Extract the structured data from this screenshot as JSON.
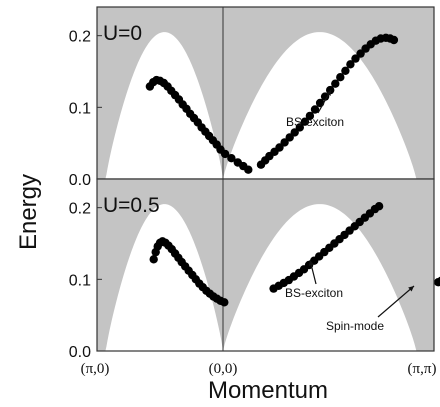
{
  "chart_data": {
    "type": "scatter",
    "xlabel": "Momentum",
    "ylabel": "Energy",
    "x_ticks": [
      "(π,0)",
      "(0,0)",
      "(π,π)"
    ],
    "y_ticks": [
      "0.0",
      "0.1",
      "0.2"
    ],
    "ylim": [
      0,
      0.24
    ],
    "grid": false,
    "continuum_color": "#c4c4c4",
    "marker_color": "#000000",
    "panels": [
      {
        "label": "U=0",
        "annotations": [
          {
            "text": "BS-exciton"
          }
        ],
        "series": [
          {
            "points": [
              [
                0.21,
                0.129
              ],
              [
                0.223,
                0.135
              ],
              [
                0.236,
                0.138
              ],
              [
                0.25,
                0.137
              ],
              [
                0.265,
                0.134
              ],
              [
                0.28,
                0.129
              ],
              [
                0.295,
                0.123
              ],
              [
                0.31,
                0.117
              ],
              [
                0.325,
                0.111
              ],
              [
                0.34,
                0.104
              ],
              [
                0.355,
                0.098
              ],
              [
                0.37,
                0.091
              ],
              [
                0.385,
                0.085
              ],
              [
                0.4,
                0.079
              ],
              [
                0.415,
                0.072
              ],
              [
                0.43,
                0.066
              ],
              [
                0.445,
                0.06
              ],
              [
                0.46,
                0.054
              ],
              [
                0.475,
                0.048
              ],
              [
                0.49,
                0.041
              ],
              [
                0.505,
                0.035
              ],
              [
                0.52,
                0.029
              ],
              [
                0.535,
                0.023
              ],
              [
                0.548,
                0.018
              ],
              [
                0.56,
                0.013
              ]
            ]
          },
          {
            "points": [
              [
                0.59,
                0.02
              ],
              [
                0.6,
                0.026
              ],
              [
                0.61,
                0.032
              ],
              [
                0.622,
                0.038
              ],
              [
                0.634,
                0.044
              ],
              [
                0.646,
                0.051
              ],
              [
                0.658,
                0.058
              ],
              [
                0.67,
                0.065
              ],
              [
                0.682,
                0.072
              ],
              [
                0.694,
                0.08
              ],
              [
                0.706,
                0.088
              ],
              [
                0.718,
                0.097
              ],
              [
                0.73,
                0.106
              ],
              [
                0.742,
                0.115
              ],
              [
                0.754,
                0.124
              ],
              [
                0.766,
                0.133
              ],
              [
                0.778,
                0.142
              ],
              [
                0.79,
                0.151
              ],
              [
                0.802,
                0.16
              ],
              [
                0.814,
                0.168
              ],
              [
                0.826,
                0.175
              ],
              [
                0.838,
                0.182
              ],
              [
                0.85,
                0.188
              ],
              [
                0.862,
                0.193
              ],
              [
                0.874,
                0.196
              ],
              [
                0.886,
                0.197
              ],
              [
                0.896,
                0.196
              ],
              [
                0.905,
                0.194
              ]
            ]
          }
        ]
      },
      {
        "label": "U=0.5",
        "annotations": [
          {
            "text": "BS-exciton"
          },
          {
            "text": "Spin-mode"
          }
        ],
        "series": [
          {
            "points": [
              [
                0.225,
                0.128
              ],
              [
                0.233,
                0.138
              ],
              [
                0.241,
                0.146
              ],
              [
                0.25,
                0.151
              ],
              [
                0.26,
                0.153
              ],
              [
                0.272,
                0.151
              ],
              [
                0.284,
                0.147
              ],
              [
                0.297,
                0.142
              ],
              [
                0.31,
                0.136
              ],
              [
                0.323,
                0.13
              ],
              [
                0.336,
                0.124
              ],
              [
                0.35,
                0.118
              ],
              [
                0.364,
                0.112
              ],
              [
                0.378,
                0.106
              ],
              [
                0.392,
                0.1
              ],
              [
                0.406,
                0.094
              ],
              [
                0.42,
                0.089
              ],
              [
                0.434,
                0.084
              ],
              [
                0.448,
                0.08
              ],
              [
                0.462,
                0.076
              ],
              [
                0.476,
                0.073
              ],
              [
                0.49,
                0.07
              ],
              [
                0.503,
                0.068
              ]
            ]
          },
          {
            "points": [
              [
                0.62,
                0.087
              ],
              [
                0.632,
                0.091
              ],
              [
                0.644,
                0.095
              ],
              [
                0.656,
                0.099
              ],
              [
                0.668,
                0.104
              ],
              [
                0.68,
                0.109
              ],
              [
                0.692,
                0.114
              ],
              [
                0.704,
                0.12
              ],
              [
                0.716,
                0.126
              ],
              [
                0.728,
                0.132
              ],
              [
                0.74,
                0.138
              ],
              [
                0.752,
                0.144
              ],
              [
                0.764,
                0.15
              ],
              [
                0.776,
                0.156
              ],
              [
                0.788,
                0.162
              ],
              [
                0.8,
                0.168
              ],
              [
                0.812,
                0.174
              ],
              [
                0.824,
                0.18
              ],
              [
                0.836,
                0.186
              ],
              [
                0.848,
                0.192
              ],
              [
                0.86,
                0.198
              ],
              [
                0.87,
                0.202
              ]
            ]
          },
          {
            "points": [
              [
                1.01,
                0.096
              ],
              [
                1.017,
                0.098
              ],
              [
                1.024,
                0.099
              ],
              [
                1.031,
                0.1
              ],
              [
                1.038,
                0.1
              ],
              [
                1.045,
                0.101
              ],
              [
                1.052,
                0.101
              ]
            ]
          }
        ]
      }
    ]
  }
}
